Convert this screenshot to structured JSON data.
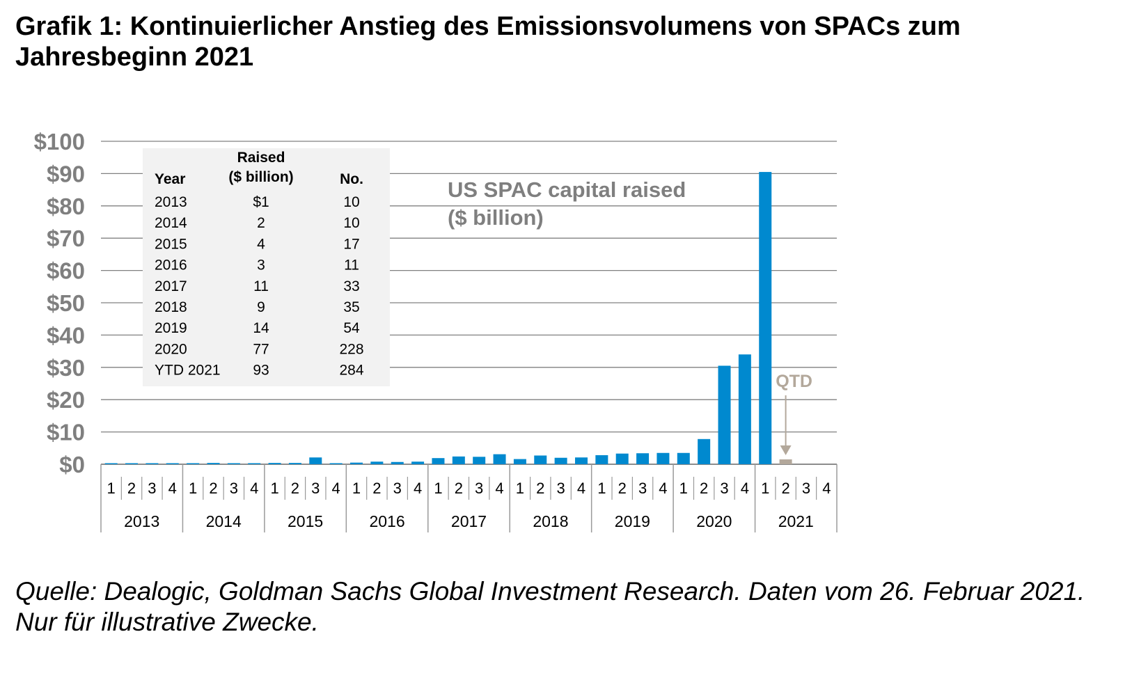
{
  "title": "Grafik 1: Kontinuierlicher Anstieg des Emissionsvolumens von SPACs zum Jahresbeginn 2021",
  "source": "Quelle: Dealogic, Goldman Sachs Global Investment Research. Daten vom 26. Februar 2021. Nur für illustrative Zwecke.",
  "chart_data": {
    "type": "bar",
    "title": "US SPAC capital raised ($ billion)",
    "title_lines": [
      "US SPAC capital raised",
      "($ billion)"
    ],
    "ylim": [
      0,
      100
    ],
    "yticks": [
      0,
      10,
      20,
      30,
      40,
      50,
      60,
      70,
      80,
      90,
      100
    ],
    "ytick_labels": [
      "$0",
      "$10",
      "$20",
      "$30",
      "$40",
      "$50",
      "$60",
      "$70",
      "$80",
      "$90",
      "$100"
    ],
    "grid": true,
    "years": [
      "2013",
      "2014",
      "2015",
      "2016",
      "2017",
      "2018",
      "2019",
      "2020",
      "2021"
    ],
    "quarters": [
      "1",
      "2",
      "3",
      "4"
    ],
    "values": [
      0.1,
      0.2,
      0.3,
      0.2,
      0.2,
      0.4,
      0.3,
      0.2,
      0.4,
      0.4,
      2.1,
      0.3,
      0.5,
      0.8,
      0.7,
      0.8,
      1.9,
      2.4,
      2.3,
      3.1,
      1.6,
      2.7,
      2.0,
      2.1,
      2.8,
      3.3,
      3.4,
      3.5,
      3.5,
      7.8,
      30.5,
      34.0,
      90.5,
      1.5,
      null,
      null
    ],
    "colors": {
      "bar": "#0089cf",
      "qtd": "#b3a89b",
      "grid": "#808080",
      "axis_label": "#7f7f7f",
      "table_bg": "#f2f2f2"
    },
    "qtd_index": 33,
    "annotation": "QTD",
    "table": {
      "headers": [
        "Year",
        "Raised ($ billion)",
        "No."
      ],
      "header_lines": [
        [
          "Year"
        ],
        [
          "Raised",
          "($ billion)"
        ],
        [
          "No."
        ]
      ],
      "rows": [
        [
          "2013",
          "$1",
          "10"
        ],
        [
          "2014",
          "2",
          "10"
        ],
        [
          "2015",
          "4",
          "17"
        ],
        [
          "2016",
          "3",
          "11"
        ],
        [
          "2017",
          "11",
          "33"
        ],
        [
          "2018",
          "9",
          "35"
        ],
        [
          "2019",
          "14",
          "54"
        ],
        [
          "2020",
          "77",
          "228"
        ],
        [
          "YTD 2021",
          "93",
          "284"
        ]
      ]
    }
  }
}
